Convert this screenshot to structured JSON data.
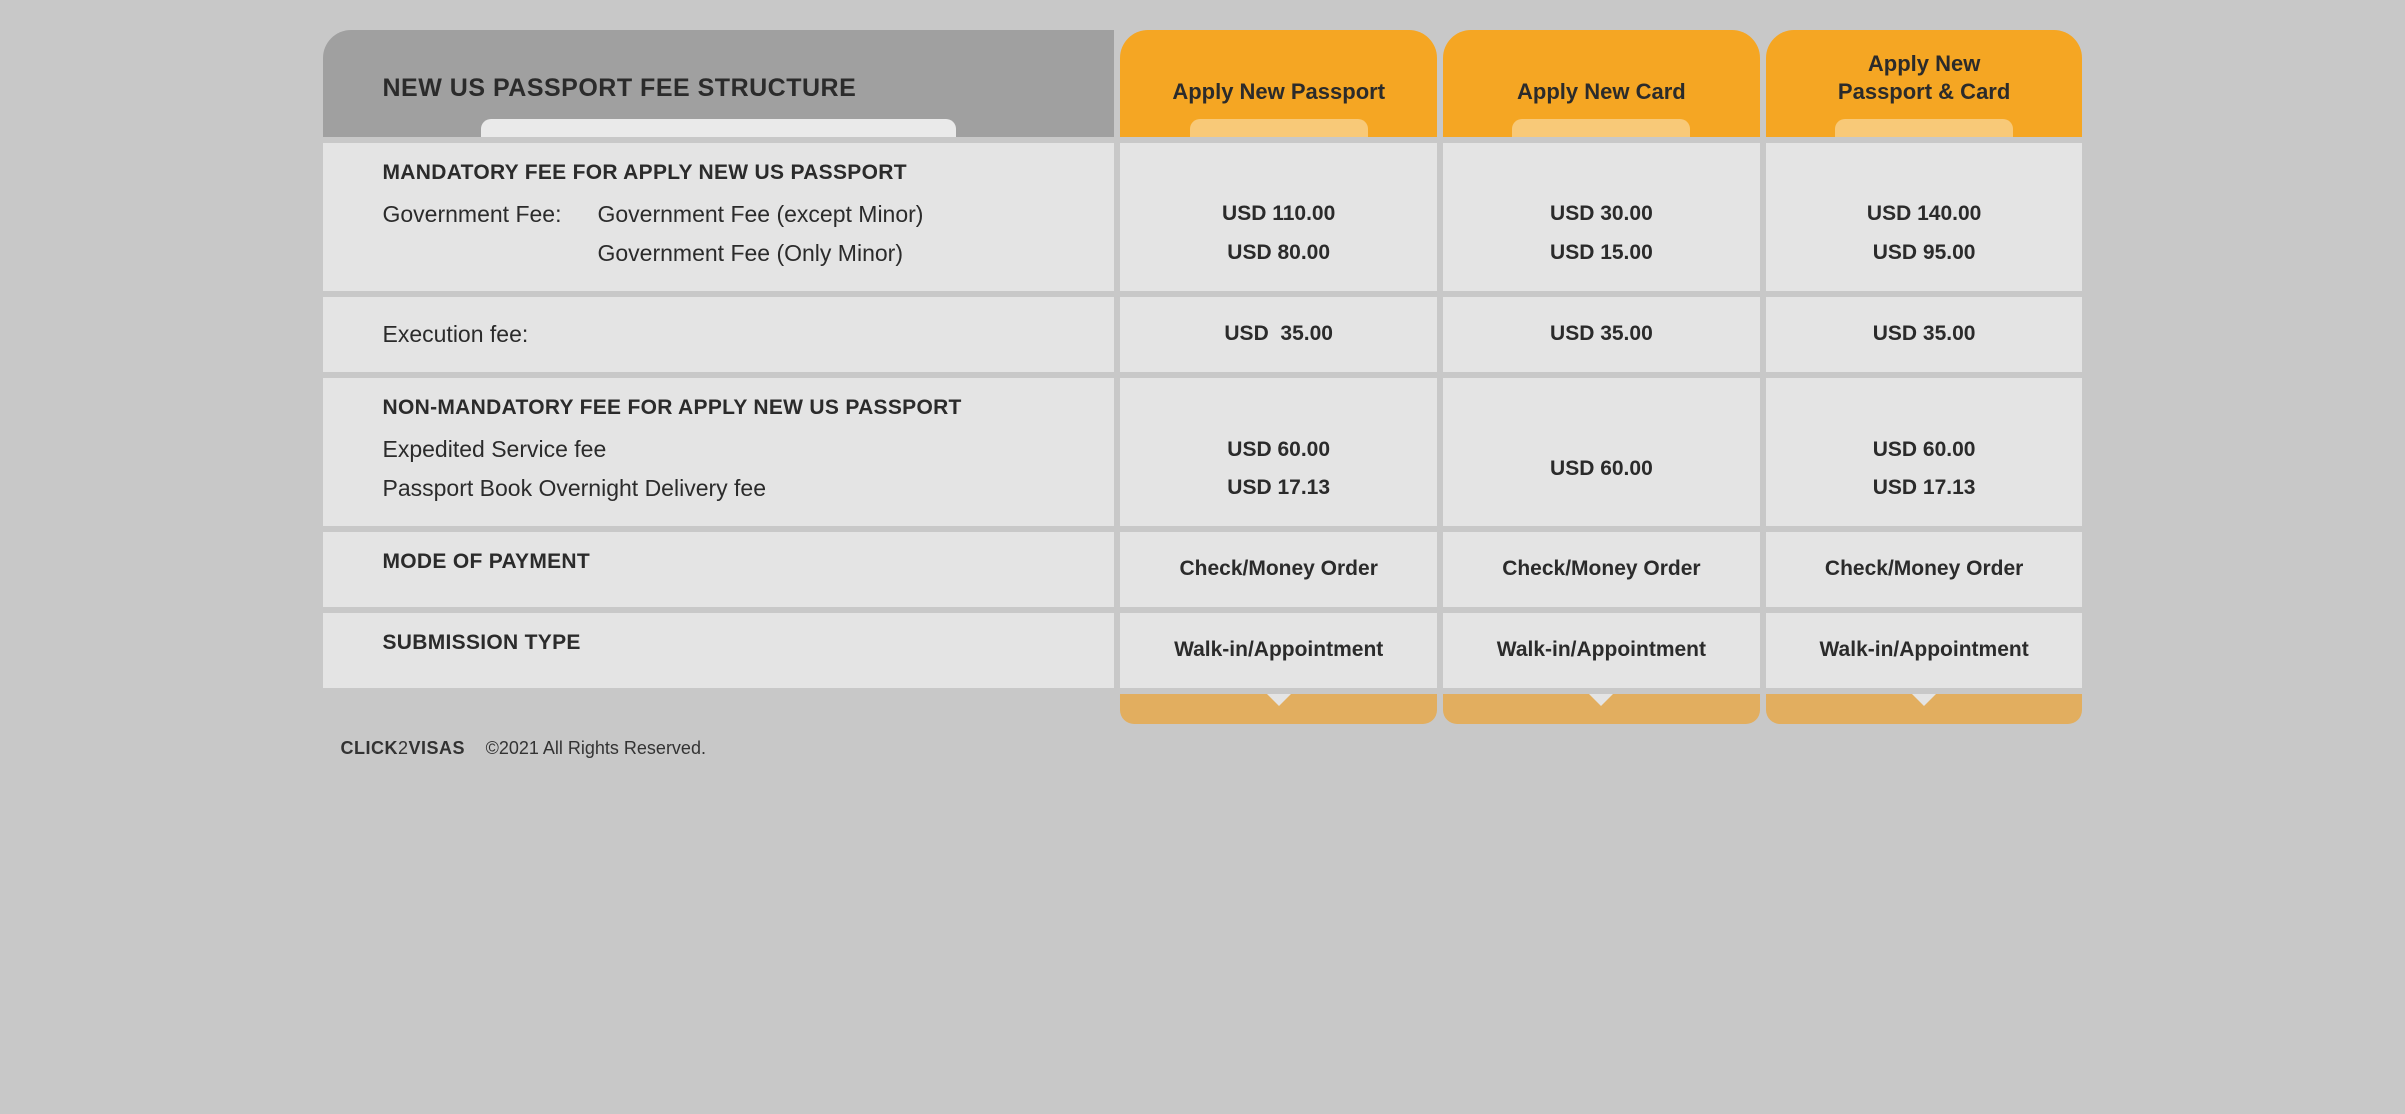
{
  "colors": {
    "page_bg": "#c8c8c8",
    "header_label_bg": "#a0a0a0",
    "header_col_bg": "#f5a623",
    "header_col_notch": "#f8c978",
    "cell_bg": "#e4e4e4",
    "foot_tab_bg": "#e2ae5f",
    "text": "#2b2b2b"
  },
  "header": {
    "title": "NEW US PASSPORT FEE STRUCTURE",
    "cols": [
      "Apply New Passport",
      "Apply New Card",
      "Apply New\nPassport & Card"
    ]
  },
  "sections": {
    "mandatory": {
      "title": "MANDATORY FEE FOR APPLY NEW US PASSPORT",
      "gov_label": "Government Fee:",
      "rows": [
        {
          "label": "Government Fee (except Minor)",
          "vals": [
            "USD 110.00",
            "USD 30.00",
            "USD 140.00"
          ]
        },
        {
          "label": "Government Fee (Only Minor)",
          "vals": [
            "USD 80.00",
            "USD 15.00",
            "USD 95.00"
          ]
        }
      ]
    },
    "execution": {
      "label": "Execution fee:",
      "vals": [
        "USD  35.00",
        "USD 35.00",
        "USD 35.00"
      ]
    },
    "nonmandatory": {
      "title": "NON-MANDATORY FEE FOR APPLY NEW US PASSPORT",
      "rows": [
        {
          "label": "Expedited Service fee",
          "vals": [
            "USD 60.00",
            "USD 60.00",
            "USD 60.00"
          ]
        },
        {
          "label": "Passport Book Overnight Delivery fee",
          "vals": [
            "USD 17.13",
            "",
            "USD 17.13"
          ]
        }
      ]
    },
    "payment": {
      "label": "MODE OF PAYMENT",
      "vals": [
        "Check/Money Order",
        "Check/Money Order",
        "Check/Money Order"
      ]
    },
    "submission": {
      "label": "SUBMISSION TYPE",
      "vals": [
        "Walk-in/Appointment",
        "Walk-in/Appointment",
        "Walk-in/Appointment"
      ]
    }
  },
  "footer": {
    "brand_pre": "CLICK",
    "brand_mid": "2",
    "brand_post": "VISAS",
    "copyright": "©2021 All Rights Reserved."
  }
}
